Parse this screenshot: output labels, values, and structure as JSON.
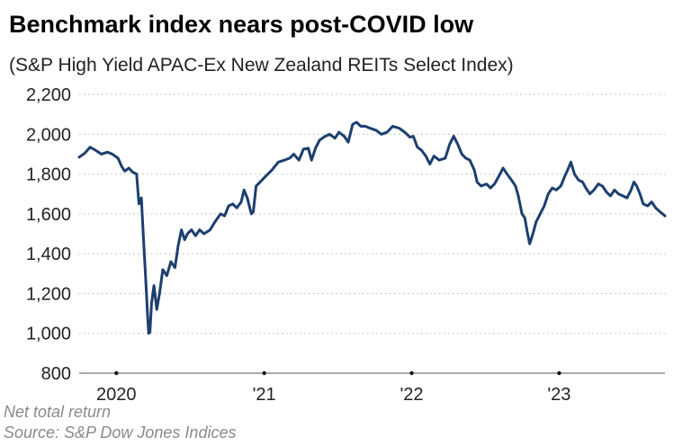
{
  "header": {
    "title": "Benchmark index nears post-COVID low",
    "subtitle": "(S&P High Yield APAC-Ex New Zealand REITs Select Index)"
  },
  "footer": {
    "note": "Net total return",
    "source": "Source: S&P Dow Jones Indices"
  },
  "colors": {
    "line": "#1d3f6e",
    "grid": "#b5b5b5",
    "axis": "#555555",
    "text": "#222222"
  },
  "chart_data": {
    "type": "line",
    "title": "Benchmark index nears post-COVID low",
    "subtitle": "(S&P High Yield APAC-Ex New Zealand REITs Select Index)",
    "xlabel": "",
    "ylabel": "",
    "ylim": [
      800,
      2200
    ],
    "xlim": [
      "2019-10-01",
      "2023-09-20"
    ],
    "yticks": [
      800,
      1000,
      1200,
      1400,
      1600,
      1800,
      2000,
      2200
    ],
    "ytick_labels": [
      "800",
      "1,000",
      "1,200",
      "1,400",
      "1,600",
      "1,800",
      "2,000",
      "2,200"
    ],
    "xticks": [
      "2020-01-01",
      "2021-01-01",
      "2022-01-01",
      "2023-01-01"
    ],
    "xtick_labels": [
      "2020",
      "'21",
      "'22",
      "'23"
    ],
    "grid": "horizontal dotted",
    "legend": "none",
    "series": [
      {
        "points": [
          [
            "2019-10-01",
            1885
          ],
          [
            "2019-10-15",
            1905
          ],
          [
            "2019-10-28",
            1935
          ],
          [
            "2019-11-10",
            1920
          ],
          [
            "2019-11-25",
            1900
          ],
          [
            "2019-12-10",
            1910
          ],
          [
            "2019-12-22",
            1900
          ],
          [
            "2020-01-05",
            1880
          ],
          [
            "2020-01-15",
            1835
          ],
          [
            "2020-01-22",
            1815
          ],
          [
            "2020-02-01",
            1830
          ],
          [
            "2020-02-10",
            1810
          ],
          [
            "2020-02-20",
            1800
          ],
          [
            "2020-02-26",
            1650
          ],
          [
            "2020-03-03",
            1680
          ],
          [
            "2020-03-08",
            1480
          ],
          [
            "2020-03-13",
            1300
          ],
          [
            "2020-03-18",
            1100
          ],
          [
            "2020-03-21",
            1000
          ],
          [
            "2020-03-24",
            1005
          ],
          [
            "2020-03-28",
            1150
          ],
          [
            "2020-04-03",
            1240
          ],
          [
            "2020-04-10",
            1120
          ],
          [
            "2020-04-17",
            1200
          ],
          [
            "2020-04-25",
            1320
          ],
          [
            "2020-05-05",
            1290
          ],
          [
            "2020-05-15",
            1360
          ],
          [
            "2020-05-25",
            1330
          ],
          [
            "2020-06-02",
            1440
          ],
          [
            "2020-06-10",
            1520
          ],
          [
            "2020-06-18",
            1470
          ],
          [
            "2020-06-25",
            1500
          ],
          [
            "2020-07-05",
            1520
          ],
          [
            "2020-07-15",
            1490
          ],
          [
            "2020-07-25",
            1520
          ],
          [
            "2020-08-05",
            1500
          ],
          [
            "2020-08-20",
            1520
          ],
          [
            "2020-09-01",
            1560
          ],
          [
            "2020-09-15",
            1600
          ],
          [
            "2020-09-25",
            1590
          ],
          [
            "2020-10-05",
            1640
          ],
          [
            "2020-10-15",
            1650
          ],
          [
            "2020-10-25",
            1630
          ],
          [
            "2020-11-05",
            1660
          ],
          [
            "2020-11-12",
            1720
          ],
          [
            "2020-11-20",
            1680
          ],
          [
            "2020-11-30",
            1600
          ],
          [
            "2020-12-05",
            1610
          ],
          [
            "2020-12-12",
            1740
          ],
          [
            "2020-12-22",
            1760
          ],
          [
            "2021-01-05",
            1790
          ],
          [
            "2021-01-20",
            1820
          ],
          [
            "2021-02-05",
            1860
          ],
          [
            "2021-02-20",
            1870
          ],
          [
            "2021-03-05",
            1880
          ],
          [
            "2021-03-15",
            1900
          ],
          [
            "2021-03-28",
            1870
          ],
          [
            "2021-04-08",
            1925
          ],
          [
            "2021-04-20",
            1930
          ],
          [
            "2021-04-28",
            1870
          ],
          [
            "2021-05-08",
            1930
          ],
          [
            "2021-05-18",
            1970
          ],
          [
            "2021-06-01",
            1990
          ],
          [
            "2021-06-12",
            2000
          ],
          [
            "2021-06-25",
            1980
          ],
          [
            "2021-07-05",
            2010
          ],
          [
            "2021-07-18",
            1990
          ],
          [
            "2021-07-28",
            1960
          ],
          [
            "2021-08-08",
            2050
          ],
          [
            "2021-08-18",
            2060
          ],
          [
            "2021-08-28",
            2040
          ],
          [
            "2021-09-08",
            2040
          ],
          [
            "2021-09-20",
            2030
          ],
          [
            "2021-10-05",
            2020
          ],
          [
            "2021-10-18",
            2000
          ],
          [
            "2021-11-01",
            2010
          ],
          [
            "2021-11-15",
            2040
          ],
          [
            "2021-12-01",
            2030
          ],
          [
            "2021-12-15",
            2010
          ],
          [
            "2021-12-28",
            1985
          ],
          [
            "2022-01-05",
            1990
          ],
          [
            "2022-01-15",
            1935
          ],
          [
            "2022-01-25",
            1920
          ],
          [
            "2022-02-05",
            1890
          ],
          [
            "2022-02-15",
            1850
          ],
          [
            "2022-02-25",
            1890
          ],
          [
            "2022-03-10",
            1870
          ],
          [
            "2022-03-25",
            1880
          ],
          [
            "2022-04-05",
            1950
          ],
          [
            "2022-04-15",
            1990
          ],
          [
            "2022-04-25",
            1950
          ],
          [
            "2022-05-05",
            1900
          ],
          [
            "2022-05-15",
            1880
          ],
          [
            "2022-05-25",
            1870
          ],
          [
            "2022-06-05",
            1820
          ],
          [
            "2022-06-12",
            1760
          ],
          [
            "2022-06-22",
            1740
          ],
          [
            "2022-07-05",
            1750
          ],
          [
            "2022-07-15",
            1730
          ],
          [
            "2022-07-25",
            1750
          ],
          [
            "2022-08-05",
            1790
          ],
          [
            "2022-08-15",
            1830
          ],
          [
            "2022-08-25",
            1800
          ],
          [
            "2022-09-05",
            1770
          ],
          [
            "2022-09-15",
            1740
          ],
          [
            "2022-09-22",
            1690
          ],
          [
            "2022-10-01",
            1600
          ],
          [
            "2022-10-08",
            1580
          ],
          [
            "2022-10-14",
            1510
          ],
          [
            "2022-10-20",
            1450
          ],
          [
            "2022-10-28",
            1500
          ],
          [
            "2022-11-05",
            1560
          ],
          [
            "2022-11-15",
            1600
          ],
          [
            "2022-11-25",
            1640
          ],
          [
            "2022-12-05",
            1700
          ],
          [
            "2022-12-15",
            1730
          ],
          [
            "2022-12-25",
            1720
          ],
          [
            "2023-01-05",
            1740
          ],
          [
            "2023-01-15",
            1790
          ],
          [
            "2023-01-22",
            1820
          ],
          [
            "2023-01-30",
            1860
          ],
          [
            "2023-02-08",
            1800
          ],
          [
            "2023-02-18",
            1770
          ],
          [
            "2023-02-28",
            1760
          ],
          [
            "2023-03-08",
            1730
          ],
          [
            "2023-03-18",
            1700
          ],
          [
            "2023-03-28",
            1720
          ],
          [
            "2023-04-08",
            1750
          ],
          [
            "2023-04-18",
            1740
          ],
          [
            "2023-04-28",
            1710
          ],
          [
            "2023-05-08",
            1690
          ],
          [
            "2023-05-18",
            1720
          ],
          [
            "2023-05-28",
            1700
          ],
          [
            "2023-06-08",
            1690
          ],
          [
            "2023-06-18",
            1680
          ],
          [
            "2023-06-28",
            1720
          ],
          [
            "2023-07-05",
            1760
          ],
          [
            "2023-07-12",
            1740
          ],
          [
            "2023-07-20",
            1700
          ],
          [
            "2023-07-28",
            1650
          ],
          [
            "2023-08-08",
            1640
          ],
          [
            "2023-08-18",
            1660
          ],
          [
            "2023-08-28",
            1630
          ],
          [
            "2023-09-08",
            1610
          ],
          [
            "2023-09-20",
            1590
          ]
        ]
      }
    ]
  }
}
